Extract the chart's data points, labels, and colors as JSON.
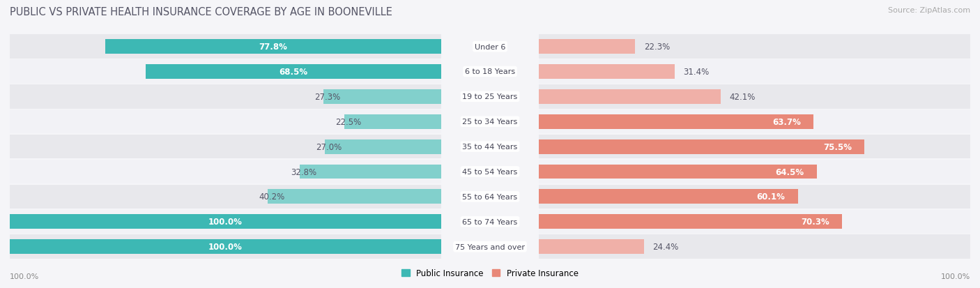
{
  "title": "PUBLIC VS PRIVATE HEALTH INSURANCE COVERAGE BY AGE IN BOONEVILLE",
  "source": "Source: ZipAtlas.com",
  "categories": [
    "Under 6",
    "6 to 18 Years",
    "19 to 25 Years",
    "25 to 34 Years",
    "35 to 44 Years",
    "45 to 54 Years",
    "55 to 64 Years",
    "65 to 74 Years",
    "75 Years and over"
  ],
  "public_values": [
    77.8,
    68.5,
    27.3,
    22.5,
    27.0,
    32.8,
    40.2,
    100.0,
    100.0
  ],
  "private_values": [
    22.3,
    31.4,
    42.1,
    63.7,
    75.5,
    64.5,
    60.1,
    70.3,
    24.4
  ],
  "pub_color_dark": "#3db8b4",
  "pub_color_light": "#82d0cc",
  "priv_color_dark": "#e07060",
  "priv_color_medium": "#e88878",
  "priv_color_light": "#f0b0a8",
  "row_bg_dark": "#e8e8ec",
  "row_bg_light": "#f2f2f6",
  "fig_bg": "#f5f5f8",
  "title_color": "#555566",
  "label_color_dark": "#555566",
  "label_color_white": "#ffffff",
  "source_color": "#aaaaaa",
  "title_fontsize": 10.5,
  "label_fontsize": 8.5,
  "tick_fontsize": 8,
  "source_fontsize": 8,
  "bar_height": 0.58,
  "max_val": 100.0
}
